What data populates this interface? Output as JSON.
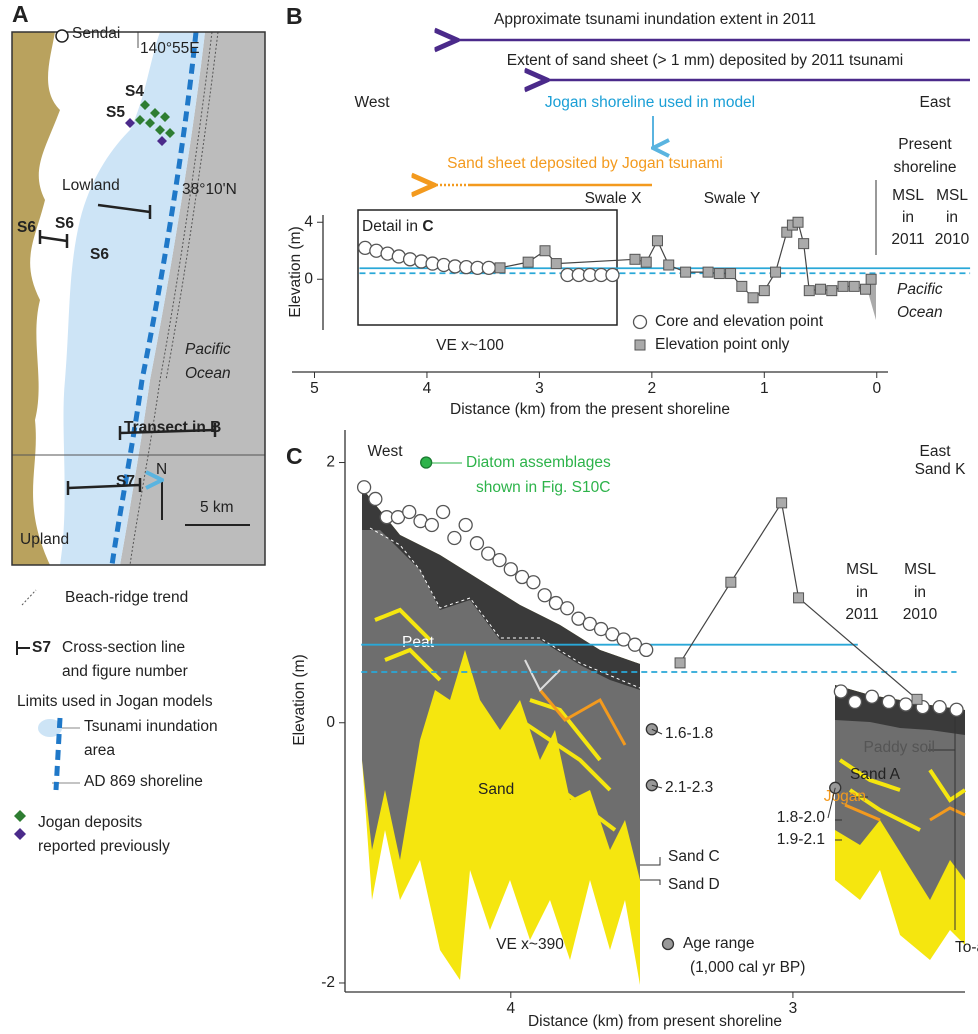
{
  "map": {
    "panel_label": "A",
    "labels": {
      "sendai": "Sendai",
      "lon": "140°55E",
      "s4": "S4",
      "s5": "S5",
      "lowland": "Lowland",
      "lat": "38°10'N",
      "s6a": "S6",
      "s6b": "S6",
      "s6c": "S6",
      "pacific": [
        "Pacific",
        "Ocean"
      ],
      "transect": "Transect in B",
      "s7": "S7",
      "north": "N",
      "scale": "5 km",
      "upland": "Upland"
    },
    "legend": {
      "beach": "Beach-ridge trend",
      "s7": "S7",
      "cross": [
        "Cross-section line",
        "and figure number"
      ],
      "limits": "Limits used in Jogan models",
      "inund": [
        "Tsunami inundation",
        "area"
      ],
      "shore": "AD 869 shoreline",
      "jogan": [
        "Jogan deposits",
        "reported previously"
      ]
    }
  },
  "chart_data": [
    {
      "type": "scatter",
      "panel_label": "B",
      "xlabel": "Distance (km) from the present shoreline",
      "ylabel": "Elevation (m)",
      "xlim": [
        5.2,
        -0.1
      ],
      "xticks": [
        5,
        4,
        3,
        2,
        1,
        0
      ],
      "ylim": [
        -3,
        5
      ],
      "yticks": [
        0,
        4
      ],
      "reference_lines": [
        {
          "value": 0.77,
          "from": 4.6,
          "to": -0.83,
          "style": "solid",
          "color": "#29a8d8"
        },
        {
          "value": 0.42,
          "from": 4.6,
          "to": -0.83,
          "style": "dashed",
          "color": "#29a8d8"
        }
      ],
      "series": [
        {
          "name": "Core and elevation point",
          "marker": "circle",
          "line": false,
          "x": [
            4.55,
            4.45,
            4.35,
            4.25,
            4.15,
            4.05,
            3.95,
            3.85,
            3.75,
            3.65,
            3.55,
            3.45,
            2.75,
            2.65,
            2.55,
            2.45,
            2.35
          ],
          "values": [
            2.2,
            2.0,
            1.8,
            1.6,
            1.4,
            1.25,
            1.1,
            1.0,
            0.9,
            0.85,
            0.8,
            0.8,
            0.3,
            0.3,
            0.3,
            0.3,
            0.3
          ]
        },
        {
          "name": "Elevation point only",
          "marker": "square",
          "line": true,
          "x": [
            3.35,
            3.1,
            2.95,
            2.85,
            2.15,
            2.05,
            1.95,
            1.85,
            1.7,
            1.5,
            1.4,
            1.3,
            1.2,
            1.1,
            1.0,
            0.9,
            0.8,
            0.75,
            0.7,
            0.65,
            0.6,
            0.5,
            0.4,
            0.3,
            0.2,
            0.1,
            0.05
          ],
          "values": [
            0.8,
            1.2,
            2.0,
            1.1,
            1.4,
            1.2,
            2.7,
            1.0,
            0.5,
            0.5,
            0.4,
            0.4,
            -0.5,
            -1.3,
            -0.8,
            0.5,
            3.3,
            3.8,
            4.0,
            2.5,
            -0.8,
            -0.7,
            -0.8,
            -0.5,
            -0.5,
            -0.7,
            0
          ]
        }
      ],
      "annotations": {
        "inund": "Approximate tsunami inundation extent in 2011",
        "sand2011": "Extent of sand sheet (> 1 mm) deposited by 2011 tsunami",
        "jshore": "Jogan shoreline used in model",
        "jsand": "Sand sheet deposited by Jogan tsunami",
        "west": "West",
        "east": "East",
        "present": [
          "Present",
          "shoreline"
        ],
        "msl2011": [
          "MSL",
          "in",
          "2011"
        ],
        "msl2010": [
          "MSL",
          "in",
          "2010"
        ],
        "swalex": "Swale X",
        "swaley": "Swale Y",
        "detail": "Detail in ",
        "detail_c": "C",
        "ve": "VE x~100",
        "pacific": [
          "Pacific",
          "Ocean"
        ]
      }
    },
    {
      "type": "scatter",
      "panel_label": "C",
      "xlabel": "Distance (km) from present shoreline",
      "ylabel": "Elevation (m)",
      "xlim": [
        4.57,
        2.39
      ],
      "xticks": [
        4,
        3
      ],
      "ylim": [
        -2.2,
        2.25
      ],
      "yticks": [
        -2,
        0,
        2
      ],
      "reference_lines": [
        {
          "value": 0.6,
          "from": 4.53,
          "to": 2.77,
          "style": "solid",
          "color": "#29a8d8"
        },
        {
          "value": 0.39,
          "from": 4.53,
          "to": 2.42,
          "style": "dashed",
          "color": "#29a8d8"
        }
      ],
      "series": [
        {
          "marker": "circle",
          "line": false,
          "x": [
            4.52,
            4.48,
            4.44,
            4.4,
            4.36,
            4.32,
            4.28,
            4.24,
            4.2,
            4.16,
            4.12,
            4.08,
            4.04,
            4.0,
            3.96,
            3.92,
            3.88,
            3.84,
            3.8,
            3.76,
            3.72,
            3.68,
            3.64,
            3.6,
            3.56,
            3.52,
            2.83,
            2.78,
            2.72,
            2.66,
            2.6,
            2.54,
            2.48,
            2.42
          ],
          "values": [
            1.81,
            1.72,
            1.58,
            1.58,
            1.62,
            1.55,
            1.52,
            1.62,
            1.42,
            1.52,
            1.38,
            1.3,
            1.25,
            1.18,
            1.12,
            1.08,
            0.98,
            0.92,
            0.88,
            0.8,
            0.76,
            0.72,
            0.68,
            0.64,
            0.6,
            0.56,
            0.24,
            0.16,
            0.2,
            0.16,
            0.14,
            0.12,
            0.12,
            0.1
          ]
        },
        {
          "marker": "square",
          "line": true,
          "x": [
            3.4,
            3.22,
            3.04,
            2.98,
            2.56
          ],
          "values": [
            0.46,
            1.08,
            1.69,
            0.96,
            0.18
          ]
        },
        {
          "name": "Age range",
          "marker": "age",
          "line": false,
          "x": [
            3.5,
            3.5,
            2.85
          ],
          "values": [
            -0.05,
            -0.48,
            -0.5
          ],
          "labels": [
            "1.6-1.8",
            "2.1-2.3",
            "1.8-2.0"
          ]
        },
        {
          "marker": "diatom",
          "line": false,
          "x": [
            4.3
          ],
          "values": [
            2.0
          ]
        }
      ],
      "annotations": {
        "west": "West",
        "east": "East",
        "diatom": [
          "Diatom assemblages",
          "shown in Fig. S10C"
        ],
        "sandk": "Sand K",
        "msl2011": [
          "MSL",
          "in",
          "2011"
        ],
        "msl2010": [
          "MSL",
          "in",
          "2010"
        ],
        "peat": "Peat",
        "sand": "Sand",
        "paddy": "Paddy soil",
        "sanda": "Sand A",
        "jogan": "Jogan",
        "age2": "1.9-2.1",
        "sandc": "Sand C",
        "sandd": "Sand D",
        "ve": "VE x~390",
        "agenote": "(1,000 cal yr BP)",
        "toa": "To-a"
      }
    }
  ]
}
